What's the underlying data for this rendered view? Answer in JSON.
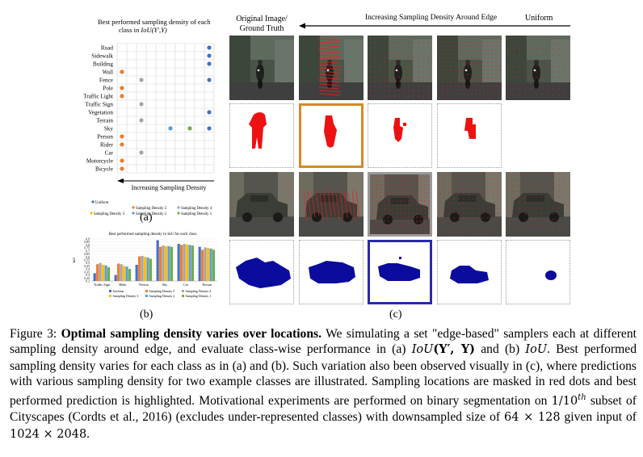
{
  "panel_a": {
    "title_line1": "Best performed sampling density of each",
    "title_line2_prefix": "class in ",
    "title_line2_math": "IoU(Y',Y)",
    "classes": [
      "Road",
      "Sidewalk",
      "Building",
      "Wall",
      "Fence",
      "Pole",
      "Traffic Light",
      "Traffic Sign",
      "Vegetation",
      "Terrain",
      "Sky",
      "Person",
      "Rider",
      "Car",
      "Motorcycle",
      "Bicycle"
    ],
    "arrow_label": "Increasing Sampling Density",
    "legend": [
      "Uniform",
      "Sampling Density 5",
      "Sampling Density 4",
      "Sampling Density 3",
      "Sampling Density 2",
      "Sampling Density 1"
    ],
    "label": "(a)",
    "colors": {
      "Uniform": "#4472c4",
      "Sampling Density 5": "#ed7d31",
      "Sampling Density 4": "#a5a5a5",
      "Sampling Density 3": "#ffc000",
      "Sampling Density 2": "#5b9bd5",
      "Sampling Density 1": "#70ad47"
    },
    "points": [
      {
        "class": "Road",
        "column": "Uniform"
      },
      {
        "class": "Sidewalk",
        "column": "Uniform"
      },
      {
        "class": "Building",
        "column": "Uniform"
      },
      {
        "class": "Wall",
        "column": "Sampling Density 5"
      },
      {
        "class": "Fence",
        "column": "Sampling Density 4"
      },
      {
        "class": "Fence",
        "column": "Uniform"
      },
      {
        "class": "Pole",
        "column": "Sampling Density 5"
      },
      {
        "class": "Traffic Light",
        "column": "Sampling Density 5"
      },
      {
        "class": "Traffic Sign",
        "column": "Sampling Density 4"
      },
      {
        "class": "Vegetation",
        "column": "Uniform"
      },
      {
        "class": "Terrain",
        "column": "Sampling Density 4"
      },
      {
        "class": "Sky",
        "column": "Sampling Density 2"
      },
      {
        "class": "Sky",
        "column": "Sampling Density 1"
      },
      {
        "class": "Sky",
        "column": "Uniform"
      },
      {
        "class": "Person",
        "column": "Sampling Density 5"
      },
      {
        "class": "Rider",
        "column": "Sampling Density 5"
      },
      {
        "class": "Car",
        "column": "Sampling Density 4"
      },
      {
        "class": "Motorcycle",
        "column": "Sampling Density 5"
      },
      {
        "class": "Bicycle",
        "column": "Sampling Density 5"
      }
    ]
  },
  "panel_b": {
    "title": "Best performed sampling density in IoU for each class",
    "ylabel": "IoU",
    "yticks": [
      "0.9",
      "0.85",
      "0.8",
      "0.75",
      "0.7",
      "0.65",
      "0.6",
      "0.55",
      "0.5",
      "0.45",
      "0.4",
      "0.35",
      "0.3",
      "0.25",
      "0.2"
    ],
    "legend": [
      "Uniform",
      "Sampling Density 5",
      "Sampling Density 4",
      "Sampling Density 3",
      "Sampling Density 2",
      "Sampling Density 1"
    ],
    "label": "(b)"
  },
  "chart_data": {
    "type": "bar",
    "title": "Best performed sampling density in IoU for each class",
    "ylabel": "IoU",
    "ylim": [
      0.2,
      0.9
    ],
    "categories": [
      "Traffic Sign",
      "Rider",
      "Person",
      "Sky",
      "Car",
      "Terrain"
    ],
    "series": [
      {
        "name": "Uniform",
        "values": [
          0.33,
          0.3,
          0.47,
          0.88,
          0.82,
          0.77
        ]
      },
      {
        "name": "Sampling Density 5",
        "values": [
          0.48,
          0.49,
          0.61,
          0.77,
          0.8,
          0.72
        ]
      },
      {
        "name": "Sampling Density 4",
        "values": [
          0.5,
          0.48,
          0.62,
          0.79,
          0.82,
          0.76
        ]
      },
      {
        "name": "Sampling Density 3",
        "values": [
          0.47,
          0.45,
          0.6,
          0.78,
          0.81,
          0.75
        ]
      },
      {
        "name": "Sampling Density 2",
        "values": [
          0.46,
          0.44,
          0.59,
          0.78,
          0.8,
          0.74
        ]
      },
      {
        "name": "Sampling Density 1",
        "values": [
          0.43,
          0.4,
          0.57,
          0.77,
          0.79,
          0.72
        ]
      }
    ]
  },
  "panel_c": {
    "col0_header_line1": "Original Image/",
    "col0_header_line2": "Ground Truth",
    "arrow_label": "Increasing Sampling Density Around Edge",
    "uniform_label": "Uniform",
    "label": "(c)"
  },
  "caption": {
    "prefix": "Figure 3: ",
    "bold": "Optimal sampling density varies over locations.",
    "s1": " We simulating a set \"edge-based\" samplers each at different sampling density around edge, and evaluate class-wise performance in (a) ",
    "m1": "IoU",
    "m1b": "(Y′, Y)",
    "s2": " and (b) ",
    "m2": "IoU",
    "s3": ". Best performed sampling density varies for each class as in (a) and (b). Such variation also been observed visually in (c), where predictions with various sampling density for two example classes are illustrated. Sampling locations are masked in red dots and best performed prediction is highlighted. Motivational experiments are performed on binary segmentation on ",
    "m3": "1/10",
    "m3sup": "th",
    "s4": " subset of Cityscapes (Cordts et al., 2016) (excludes under-represented classes) with downsampled size of ",
    "m4": "64 × 128",
    "s5": " given input of ",
    "m5": "1024 × 2048",
    "s6": "."
  }
}
